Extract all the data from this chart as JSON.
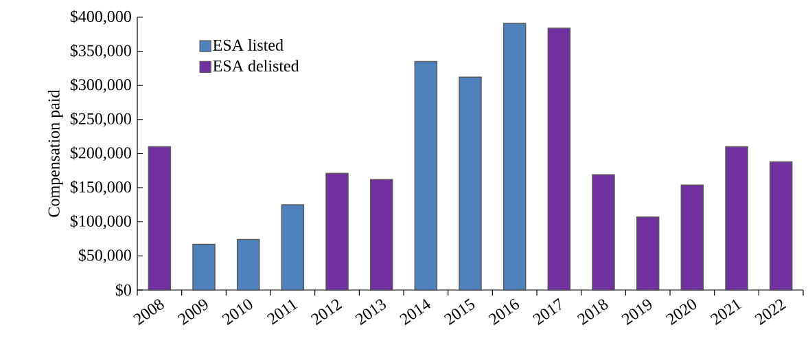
{
  "chart_data": {
    "type": "bar",
    "ylabel": "Compensation paid",
    "categories": [
      "2008",
      "2009",
      "2010",
      "2011",
      "2012",
      "2013",
      "2014",
      "2015",
      "2016",
      "2017",
      "2018",
      "2019",
      "2020",
      "2021",
      "2022"
    ],
    "series": [
      {
        "name": "ESA listed",
        "color": "#4f81bd",
        "values": [
          null,
          67000,
          74000,
          125000,
          null,
          null,
          335000,
          312000,
          391000,
          null,
          null,
          null,
          null,
          null,
          null
        ]
      },
      {
        "name": "ESA delisted",
        "color": "#7030a0",
        "values": [
          210000,
          null,
          null,
          null,
          171000,
          162000,
          null,
          null,
          null,
          384000,
          169000,
          107000,
          154000,
          210000,
          188000
        ]
      }
    ],
    "stacked": true,
    "ylim": [
      0,
      400000
    ],
    "yticks": [
      {
        "value": 0,
        "label": "$0"
      },
      {
        "value": 50000,
        "label": "$50,000"
      },
      {
        "value": 100000,
        "label": "$100,000"
      },
      {
        "value": 150000,
        "label": "$150,000"
      },
      {
        "value": 200000,
        "label": "$200,000"
      },
      {
        "value": 250000,
        "label": "$250,000"
      },
      {
        "value": 300000,
        "label": "$300,000"
      },
      {
        "value": 350000,
        "label": "$350,000"
      },
      {
        "value": 400000,
        "label": "$400,000"
      }
    ],
    "grid": false,
    "legend": "top left"
  }
}
